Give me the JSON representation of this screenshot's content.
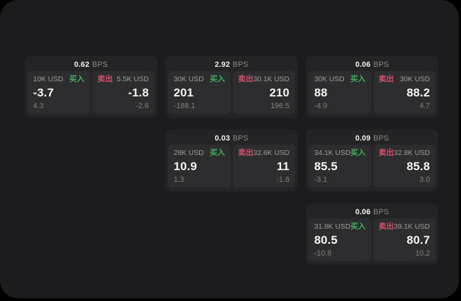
{
  "labels": {
    "bps": "BPS",
    "buy": "买入",
    "sell": "卖出"
  },
  "colors": {
    "page_background": "#000000",
    "panel_background": "#1c1c1e",
    "card_background": "#242426",
    "tile_background": "#2d2d2f",
    "buy_green": "#41b05e",
    "sell_red": "#d25069"
  },
  "cards": [
    {
      "bps": "0.62",
      "buy": {
        "amount": "10K USD",
        "price": "-3.7",
        "delta": "4.3"
      },
      "sell": {
        "amount": "5.5K USD",
        "price": "-1.8",
        "delta": "-2.6"
      }
    },
    {
      "bps": "2.92",
      "buy": {
        "amount": "30K USD",
        "price": "201",
        "delta": "-188.1"
      },
      "sell": {
        "amount": "30.1K USD",
        "price": "210",
        "delta": "196.5"
      }
    },
    {
      "bps": "0.06",
      "buy": {
        "amount": "30K USD",
        "price": "88",
        "delta": "-4.9"
      },
      "sell": {
        "amount": "30K USD",
        "price": "88.2",
        "delta": "4.7"
      }
    },
    {
      "bps": "0.03",
      "buy": {
        "amount": "28K USD",
        "price": "10.9",
        "delta": "1.3"
      },
      "sell": {
        "amount": "32.6K USD",
        "price": "11",
        "delta": "-1.8"
      }
    },
    {
      "bps": "0.09",
      "buy": {
        "amount": "34.1K USD",
        "price": "85.5",
        "delta": "-3.1"
      },
      "sell": {
        "amount": "32.8K USD",
        "price": "85.8",
        "delta": "3.0"
      }
    },
    {
      "bps": "0.06",
      "buy": {
        "amount": "31.8K USD",
        "price": "80.5",
        "delta": "-10.8"
      },
      "sell": {
        "amount": "39.1K USD",
        "price": "80.7",
        "delta": "10.2"
      }
    }
  ]
}
